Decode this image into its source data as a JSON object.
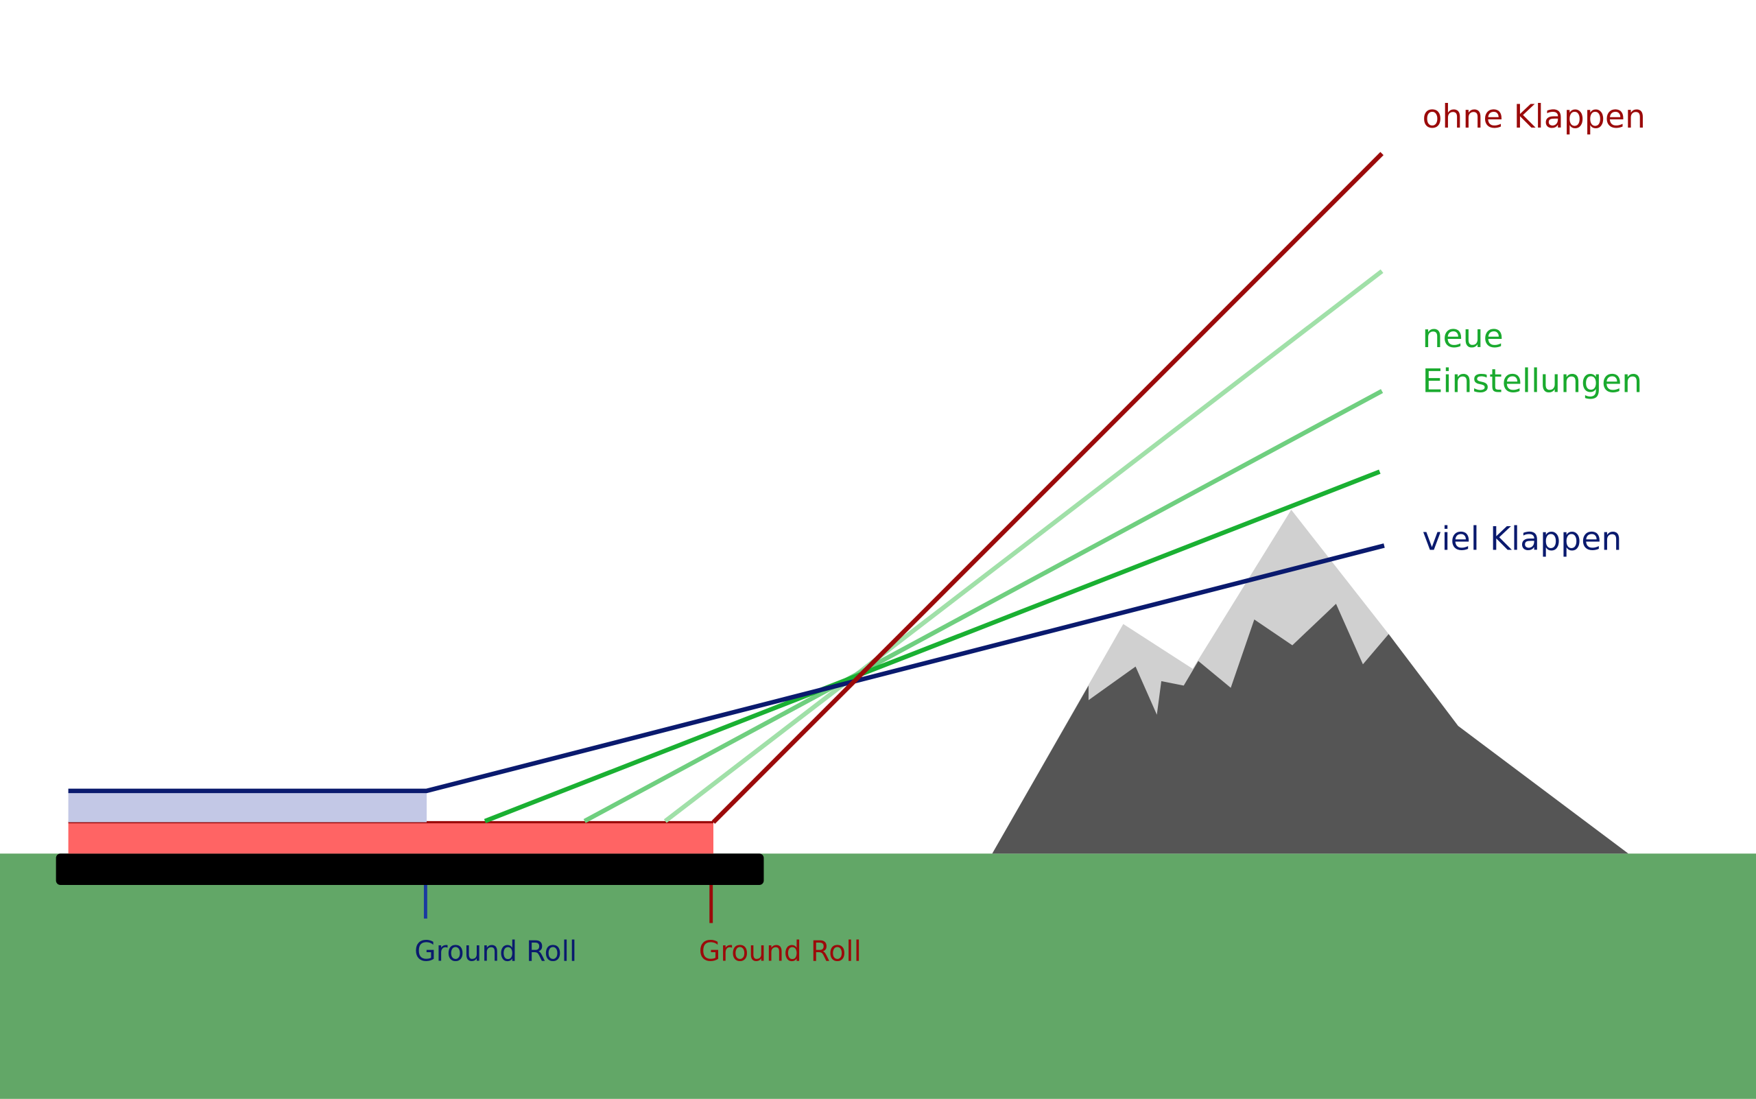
{
  "labels": {
    "ohne_klappen": "ohne Klappen",
    "neue_einstellungen": [
      "neue",
      "Einstellungen"
    ],
    "viel_klappen": "viel Klappen"
  },
  "ground_roll": {
    "short": "Ground Roll",
    "long": "Ground Roll"
  }
}
